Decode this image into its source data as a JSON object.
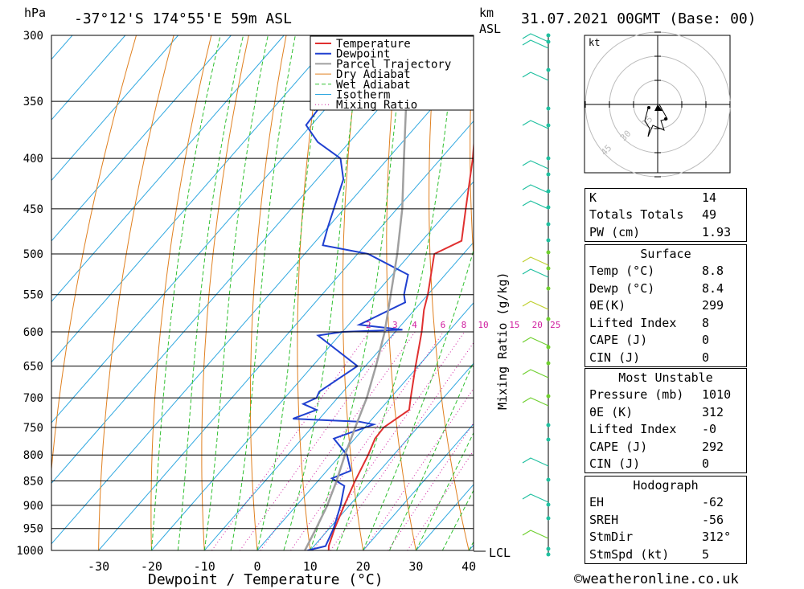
{
  "header": {
    "location": "-37°12'S 174°55'E 59m ASL",
    "datetime": "31.07.2021 00GMT (Base: 00)",
    "unit_left": "hPa",
    "unit_km": "km",
    "unit_asl": "ASL"
  },
  "chart_data": {
    "type": "line",
    "title": "-37°12'S 174°55'E 59m ASL",
    "xlabel": "Dewpoint / Temperature (°C)",
    "ylabel": "hPa",
    "right_axis_label": "Mixing Ratio (g/kg)",
    "xlim": [
      -40,
      40
    ],
    "ylim": [
      1000,
      300
    ],
    "skew_deg_per_log": true,
    "pressure_ticks": [
      300,
      350,
      400,
      450,
      500,
      550,
      600,
      650,
      700,
      750,
      800,
      850,
      900,
      950,
      1000
    ],
    "temp_ticks": [
      -30,
      -20,
      -10,
      0,
      10,
      20,
      30,
      40
    ],
    "mixing_ratio_labels": [
      "2",
      "3",
      "4",
      "6",
      "8",
      "10",
      "15",
      "20",
      "25"
    ],
    "mixing_ratio_values": [
      2,
      3,
      4,
      6,
      8,
      10,
      15,
      20,
      25
    ],
    "lcl_label": "LCL",
    "legend": [
      "Temperature",
      "Dewpoint",
      "Parcel Trajectory",
      "Dry Adiabat",
      "Wet Adiabat",
      "Isotherm",
      "Mixing Ratio"
    ],
    "colors": {
      "temperature": "#e03030",
      "dewpoint": "#2040d0",
      "parcel": "#a0a0a0",
      "dry_adiabat": "#e08020",
      "wet_adiabat": "#30c030",
      "isotherm": "#30a8e0",
      "mixing_ratio": "#d020a0"
    },
    "series": [
      {
        "name": "Temperature",
        "points": [
          {
            "p": 1000,
            "t": 13.5
          },
          {
            "p": 990,
            "t": 12.8
          },
          {
            "p": 950,
            "t": 11.0
          },
          {
            "p": 900,
            "t": 9.0
          },
          {
            "p": 850,
            "t": 7.0
          },
          {
            "p": 800,
            "t": 5.2
          },
          {
            "p": 770,
            "t": 3.8
          },
          {
            "p": 750,
            "t": 3.6
          },
          {
            "p": 720,
            "t": 5.5
          },
          {
            "p": 700,
            "t": 3.8
          },
          {
            "p": 650,
            "t": -0.5
          },
          {
            "p": 600,
            "t": -5.0
          },
          {
            "p": 570,
            "t": -8.2
          },
          {
            "p": 550,
            "t": -10.0
          },
          {
            "p": 500,
            "t": -15.5
          },
          {
            "p": 485,
            "t": -12.5
          },
          {
            "p": 450,
            "t": -17.0
          },
          {
            "p": 400,
            "t": -24.0
          },
          {
            "p": 370,
            "t": -29.0
          },
          {
            "p": 350,
            "t": -33.0
          },
          {
            "p": 300,
            "t": -43.0
          }
        ]
      },
      {
        "name": "Dewpoint",
        "points": [
          {
            "p": 1000,
            "t": 9.5
          },
          {
            "p": 990,
            "t": 12.2
          },
          {
            "p": 950,
            "t": 10.8
          },
          {
            "p": 900,
            "t": 8.3
          },
          {
            "p": 860,
            "t": 5.8
          },
          {
            "p": 845,
            "t": 2.2
          },
          {
            "p": 830,
            "t": 4.5
          },
          {
            "p": 800,
            "t": 1.2
          },
          {
            "p": 770,
            "t": -4.0
          },
          {
            "p": 760,
            "t": -2.0
          },
          {
            "p": 745,
            "t": 1.2
          },
          {
            "p": 740,
            "t": -2.0
          },
          {
            "p": 735,
            "t": -15.0
          },
          {
            "p": 720,
            "t": -12.0
          },
          {
            "p": 710,
            "t": -15.5
          },
          {
            "p": 700,
            "t": -14.0
          },
          {
            "p": 690,
            "t": -14.5
          },
          {
            "p": 650,
            "t": -11.5
          },
          {
            "p": 605,
            "t": -24.0
          },
          {
            "p": 600,
            "t": -20.0
          },
          {
            "p": 597,
            "t": -9.0
          },
          {
            "p": 590,
            "t": -18.0
          },
          {
            "p": 560,
            "t": -13.0
          },
          {
            "p": 550,
            "t": -14.5
          },
          {
            "p": 525,
            "t": -17.0
          },
          {
            "p": 500,
            "t": -28.0
          },
          {
            "p": 490,
            "t": -38.0
          },
          {
            "p": 470,
            "t": -40.0
          },
          {
            "p": 420,
            "t": -45.0
          },
          {
            "p": 400,
            "t": -49.0
          },
          {
            "p": 385,
            "t": -56.0
          },
          {
            "p": 370,
            "t": -61.0
          },
          {
            "p": 350,
            "t": -61.5
          },
          {
            "p": 300,
            "t": -66.0
          }
        ]
      },
      {
        "name": "Parcel Trajectory",
        "points": [
          {
            "p": 1000,
            "t": 9.0
          },
          {
            "p": 950,
            "t": 7.5
          },
          {
            "p": 900,
            "t": 5.8
          },
          {
            "p": 850,
            "t": 3.5
          },
          {
            "p": 800,
            "t": 0.8
          },
          {
            "p": 750,
            "t": -1.8
          },
          {
            "p": 700,
            "t": -4.5
          },
          {
            "p": 650,
            "t": -8.0
          },
          {
            "p": 600,
            "t": -12.0
          },
          {
            "p": 550,
            "t": -17.0
          },
          {
            "p": 500,
            "t": -22.5
          },
          {
            "p": 450,
            "t": -29.0
          },
          {
            "p": 400,
            "t": -37.0
          },
          {
            "p": 350,
            "t": -46.0
          },
          {
            "p": 300,
            "t": -57.0
          }
        ]
      }
    ],
    "wind_km_label_ticks": true
  },
  "hodograph": {
    "unit": "kt",
    "ring_labels": [
      "15",
      "30",
      "45"
    ]
  },
  "indices": [
    {
      "label": "K",
      "value": "14"
    },
    {
      "label": "Totals Totals",
      "value": "49"
    },
    {
      "label": "PW (cm)",
      "value": "1.93"
    }
  ],
  "surface": {
    "title": "Surface",
    "rows": [
      {
        "label": "Temp (°C)",
        "value": "8.8"
      },
      {
        "label": "Dewp (°C)",
        "value": "8.4"
      },
      {
        "label": "θE(K)",
        "value": "299"
      },
      {
        "label": "Lifted Index",
        "value": "8"
      },
      {
        "label": "CAPE (J)",
        "value": "0"
      },
      {
        "label": "CIN (J)",
        "value": "0"
      }
    ]
  },
  "most_unstable": {
    "title": "Most Unstable",
    "rows": [
      {
        "label": "Pressure (mb)",
        "value": "1010"
      },
      {
        "label": "θE (K)",
        "value": "312"
      },
      {
        "label": "Lifted Index",
        "value": "-0"
      },
      {
        "label": "CAPE (J)",
        "value": "292"
      },
      {
        "label": "CIN (J)",
        "value": "0"
      }
    ]
  },
  "hodograph_stats": {
    "title": "Hodograph",
    "rows": [
      {
        "label": "EH",
        "value": "-62"
      },
      {
        "label": "SREH",
        "value": "-56"
      },
      {
        "label": "StmDir",
        "value": "312°"
      },
      {
        "label": "StmSpd (kt)",
        "value": "5"
      }
    ]
  },
  "credit": "©weatheronline.co.uk"
}
